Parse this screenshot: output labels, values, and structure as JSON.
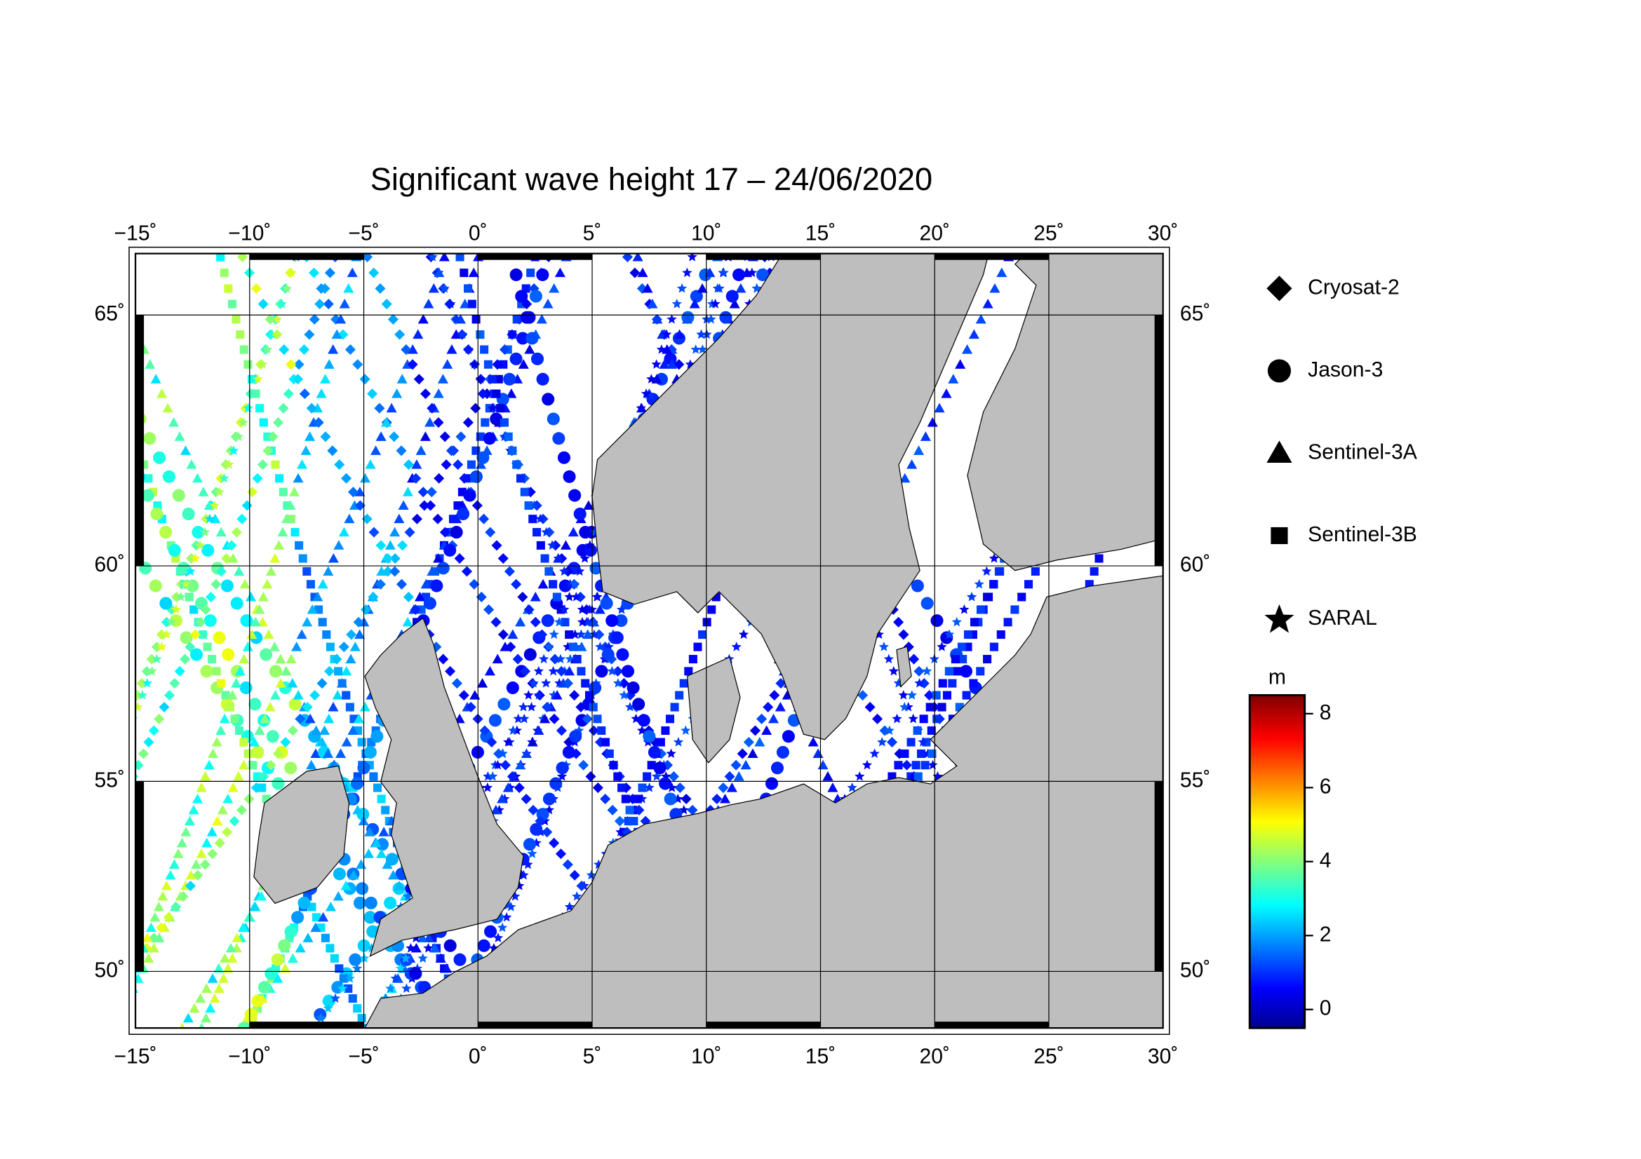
{
  "chart_data": {
    "type": "map",
    "title": "Significant wave height 17 – 24/06/2020",
    "xlim": [
      -15,
      30
    ],
    "ylim": [
      48.4,
      66.1
    ],
    "xticks": [
      {
        "value": -15,
        "label": "−15˚"
      },
      {
        "value": -10,
        "label": "−10˚"
      },
      {
        "value": -5,
        "label": "−5˚"
      },
      {
        "value": 0,
        "label": "0˚"
      },
      {
        "value": 5,
        "label": "5˚"
      },
      {
        "value": 10,
        "label": "10˚"
      },
      {
        "value": 15,
        "label": "15˚"
      },
      {
        "value": 20,
        "label": "20˚"
      },
      {
        "value": 25,
        "label": "25˚"
      },
      {
        "value": 30,
        "label": "30˚"
      }
    ],
    "yticks": [
      {
        "value": 50,
        "label": "50˚"
      },
      {
        "value": 55,
        "label": "55˚"
      },
      {
        "value": 60,
        "label": "60˚"
      },
      {
        "value": 65,
        "label": "65˚"
      }
    ],
    "legend": [
      "Cryosat-2",
      "Jason-3",
      "Sentinel-3A",
      "Sentinel-3B",
      "SARAL"
    ],
    "colorbar": {
      "label": "m",
      "clim": [
        -0.5,
        8.5
      ],
      "ticks": [
        0,
        2,
        4,
        6,
        8
      ]
    }
  }
}
